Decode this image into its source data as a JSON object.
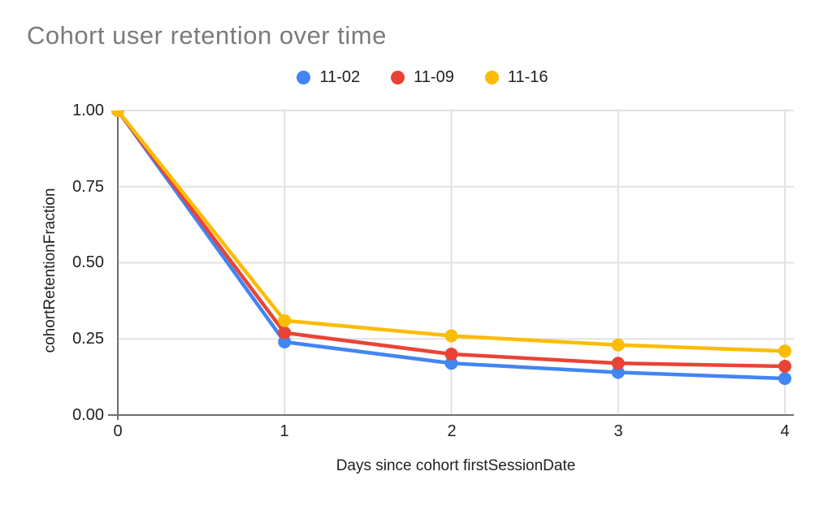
{
  "title": "Cohort user retention over time",
  "chart_data": {
    "type": "line",
    "title": "Cohort user retention over time",
    "x": [
      0,
      1,
      2,
      3,
      4
    ],
    "series": [
      {
        "name": "11-02",
        "color": "#4285F4",
        "values": [
          1.0,
          0.24,
          0.17,
          0.14,
          0.12
        ]
      },
      {
        "name": "11-09",
        "color": "#EA4335",
        "values": [
          1.0,
          0.27,
          0.2,
          0.17,
          0.16
        ]
      },
      {
        "name": "11-16",
        "color": "#FBBC04",
        "values": [
          1.0,
          0.31,
          0.26,
          0.23,
          0.21
        ]
      }
    ],
    "xlabel": "Days since cohort firstSessionDate",
    "ylabel": "cohortRetentionFraction",
    "xlim": [
      0,
      4
    ],
    "ylim": [
      0,
      1
    ],
    "xticks": [
      "0",
      "1",
      "2",
      "3",
      "4"
    ],
    "yticks": [
      "1.00",
      "0.75",
      "0.50",
      "0.25",
      "0.00"
    ],
    "grid": true,
    "legend_position": "top"
  },
  "colors": {
    "title_text": "#7b7b7b",
    "axis_text": "#202124",
    "gridline": "#e2e2e2",
    "axis_line": "#6e6e6e",
    "background": "#ffffff"
  }
}
